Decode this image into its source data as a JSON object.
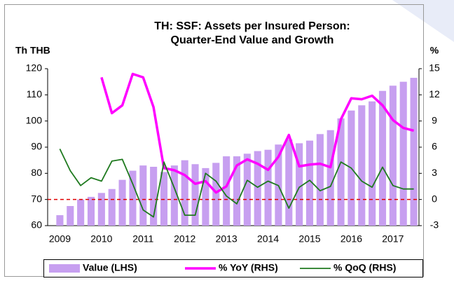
{
  "chart_data": {
    "type": "bar_line",
    "title": "TH: SSF: Assets per Insured Person:",
    "subtitle": "Quarter-End Value and Growth",
    "y_label": "Th THB",
    "y2_label": "%",
    "categories": [
      "2009",
      null,
      null,
      null,
      "2010",
      null,
      null,
      null,
      "2011",
      null,
      null,
      null,
      "2012",
      null,
      null,
      null,
      "2013",
      null,
      null,
      null,
      "2014",
      null,
      null,
      null,
      "2015",
      null,
      null,
      null,
      "2016",
      null,
      null,
      null,
      "2017",
      null,
      null
    ],
    "series": [
      {
        "name": "Value (LHS)",
        "type": "bar",
        "color": "#c79ff0",
        "values": [
          64,
          67.5,
          70,
          71,
          72.5,
          74,
          77.5,
          81,
          83,
          82.5,
          80.5,
          83,
          85,
          83.5,
          82,
          84,
          86.5,
          86.5,
          87.5,
          88.5,
          89,
          91,
          93,
          91.5,
          92.5,
          95,
          96.5,
          101,
          104,
          106,
          107.5,
          111.5,
          113.5,
          115,
          116.5
        ]
      },
      {
        "name": "% YoY (RHS)",
        "type": "line",
        "axis": "y2",
        "color": "#ff00ff",
        "width": 3.5,
        "values": [
          null,
          null,
          null,
          null,
          14.0,
          9.9,
          10.8,
          14.4,
          14.0,
          10.6,
          3.6,
          3.35,
          2.8,
          1.8,
          2.1,
          0.8,
          1.5,
          3.9,
          4.6,
          4.1,
          3.4,
          4.9,
          7.4,
          3.8,
          4.0,
          4.1,
          3.7,
          9.2,
          11.6,
          11.5,
          11.9,
          10.8,
          9.1,
          8.2,
          7.9
        ]
      },
      {
        "name": "% QoQ (RHS)",
        "type": "line",
        "axis": "y2",
        "color": "#1f7a1f",
        "width": 1.8,
        "values": [
          5.8,
          3.3,
          1.6,
          2.5,
          2.1,
          4.4,
          4.6,
          1.8,
          -1.2,
          -2.0,
          4.3,
          1.3,
          -1.8,
          -1.8,
          3.0,
          2.1,
          0.4,
          -0.5,
          2.2,
          1.4,
          2.1,
          1.6,
          -1.0,
          1.4,
          2.2,
          1.0,
          1.5,
          4.3,
          3.6,
          2.1,
          1.4,
          3.7,
          1.6,
          1.2,
          1.2
        ]
      }
    ],
    "ylim": [
      60,
      120
    ],
    "yticks": [
      60,
      70,
      80,
      90,
      100,
      110,
      120
    ],
    "y2lim": [
      -3,
      15
    ],
    "y2ticks": [
      -3,
      0,
      3,
      6,
      9,
      12,
      15
    ],
    "reference_lines": [
      {
        "axis": "y2",
        "value": 0,
        "color": "#e00000",
        "style": "dashed"
      }
    ],
    "legend": "bottom"
  }
}
